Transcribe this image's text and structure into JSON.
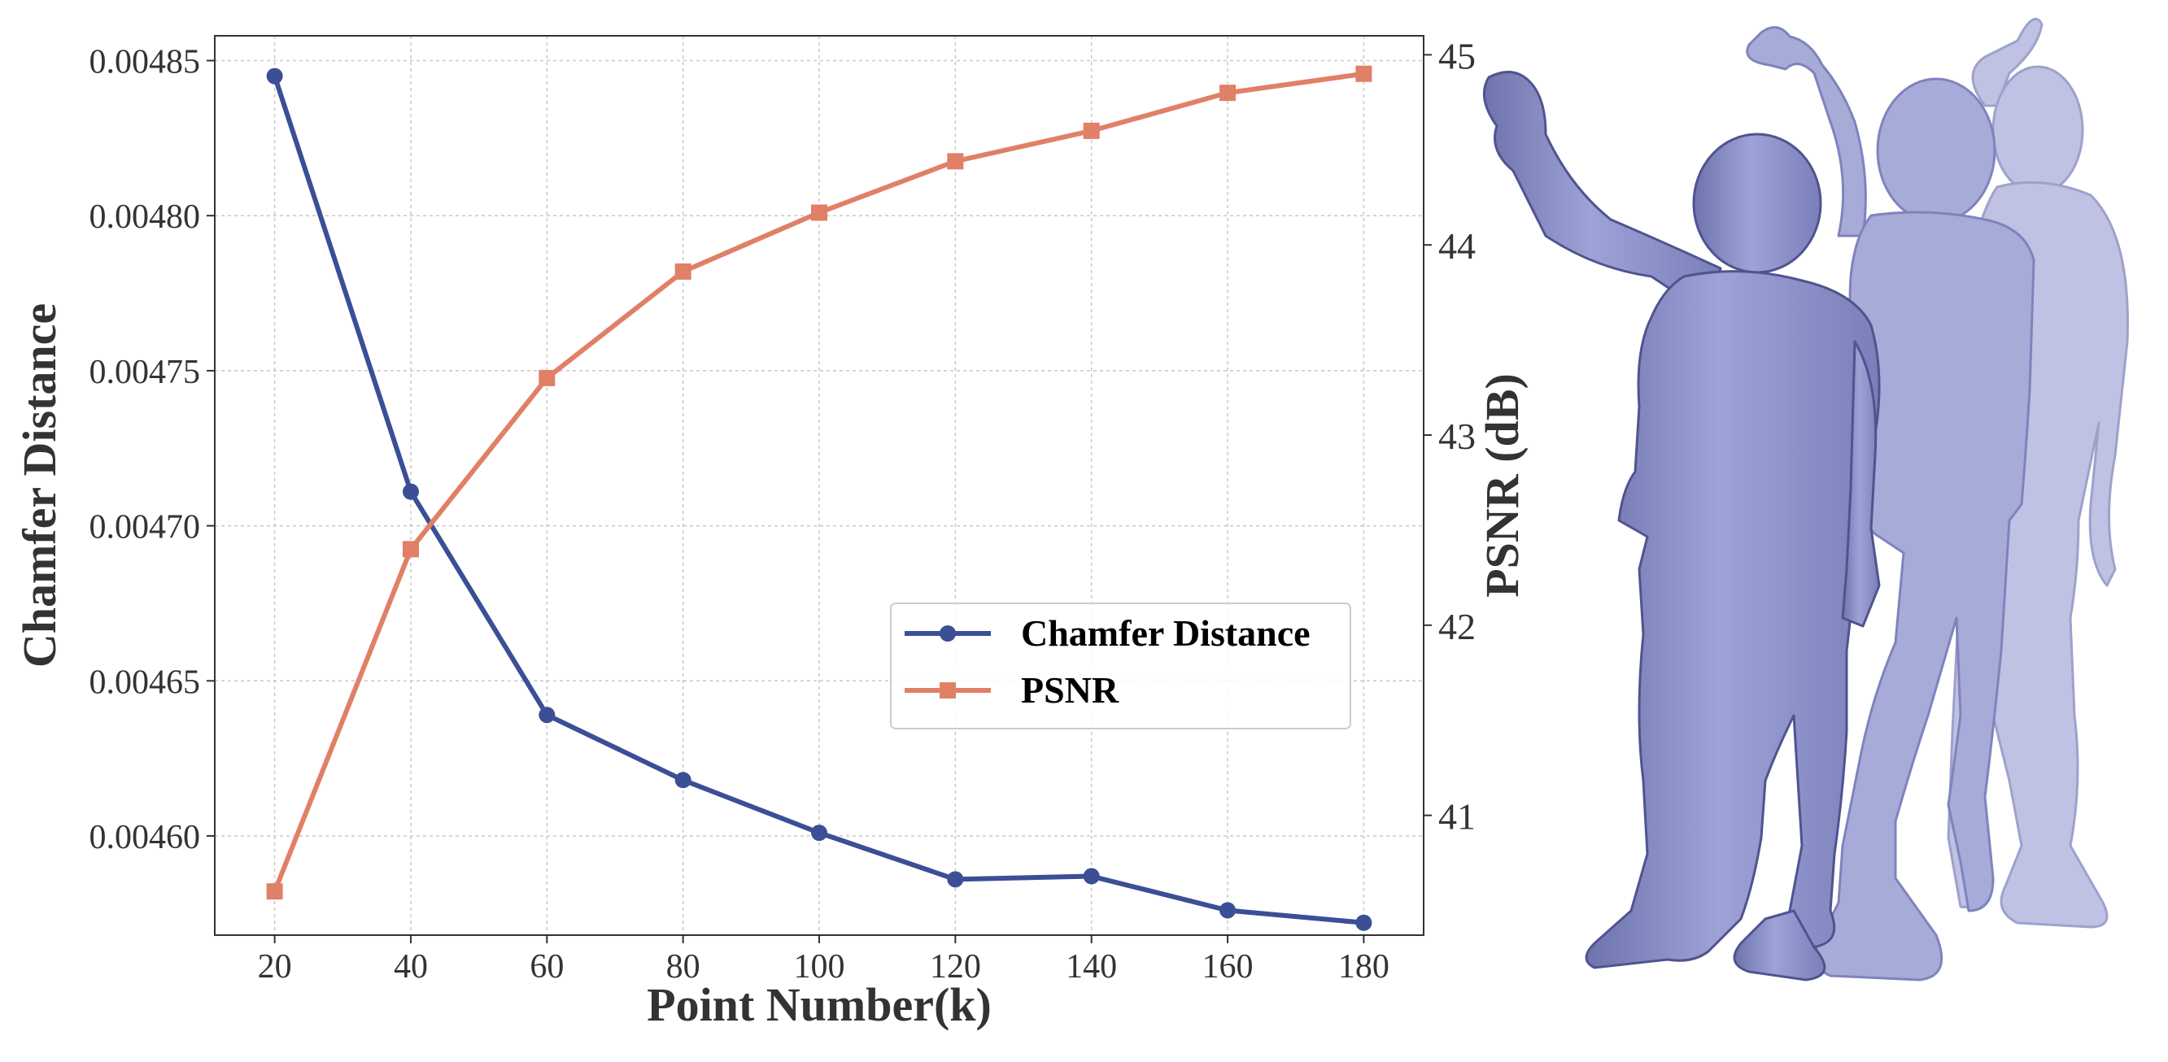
{
  "chart_data": {
    "type": "line",
    "x": [
      20,
      40,
      60,
      80,
      100,
      120,
      140,
      160,
      180
    ],
    "xticks": [
      "20",
      "40",
      "60",
      "80",
      "100",
      "120",
      "140",
      "160",
      "180"
    ],
    "xlabel": "Point Number(k)",
    "xlim": [
      11.2,
      188.8
    ],
    "ylabel_left": "Chamfer Distance",
    "ylabel_right": "PSNR (dB)",
    "yticks_left": [
      0.0046,
      0.00465,
      0.0047,
      0.00475,
      0.0048,
      0.00485
    ],
    "ytick_labels_left": [
      "0.00460",
      "0.00465",
      "0.00470",
      "0.00475",
      "0.00480",
      "0.00485"
    ],
    "ylim_left": [
      0.004568,
      0.004858
    ],
    "yticks_right": [
      41,
      42,
      43,
      44,
      45
    ],
    "ytick_labels_right": [
      "41",
      "42",
      "43",
      "44",
      "45"
    ],
    "ylim_right": [
      40.37,
      45.1
    ],
    "grid": true,
    "legend_position": "center-right",
    "series": [
      {
        "name": "Chamfer Distance",
        "axis": "left",
        "color": "#3a4f95",
        "marker": "circle",
        "values": [
          0.004845,
          0.004711,
          0.004639,
          0.004618,
          0.004601,
          0.004586,
          0.004587,
          0.004576,
          0.004572
        ]
      },
      {
        "name": "PSNR",
        "axis": "right",
        "color": "#e08067",
        "marker": "square",
        "values": [
          40.6,
          42.4,
          43.3,
          43.86,
          44.17,
          44.44,
          44.6,
          44.8,
          44.9
        ]
      }
    ]
  },
  "figure_panel": {
    "name": "3D human mesh reconstructions (dancing person, three overlapping poses)",
    "mesh_colors": [
      "#8e93c8",
      "#a5a9d6",
      "#bec1e2"
    ]
  }
}
